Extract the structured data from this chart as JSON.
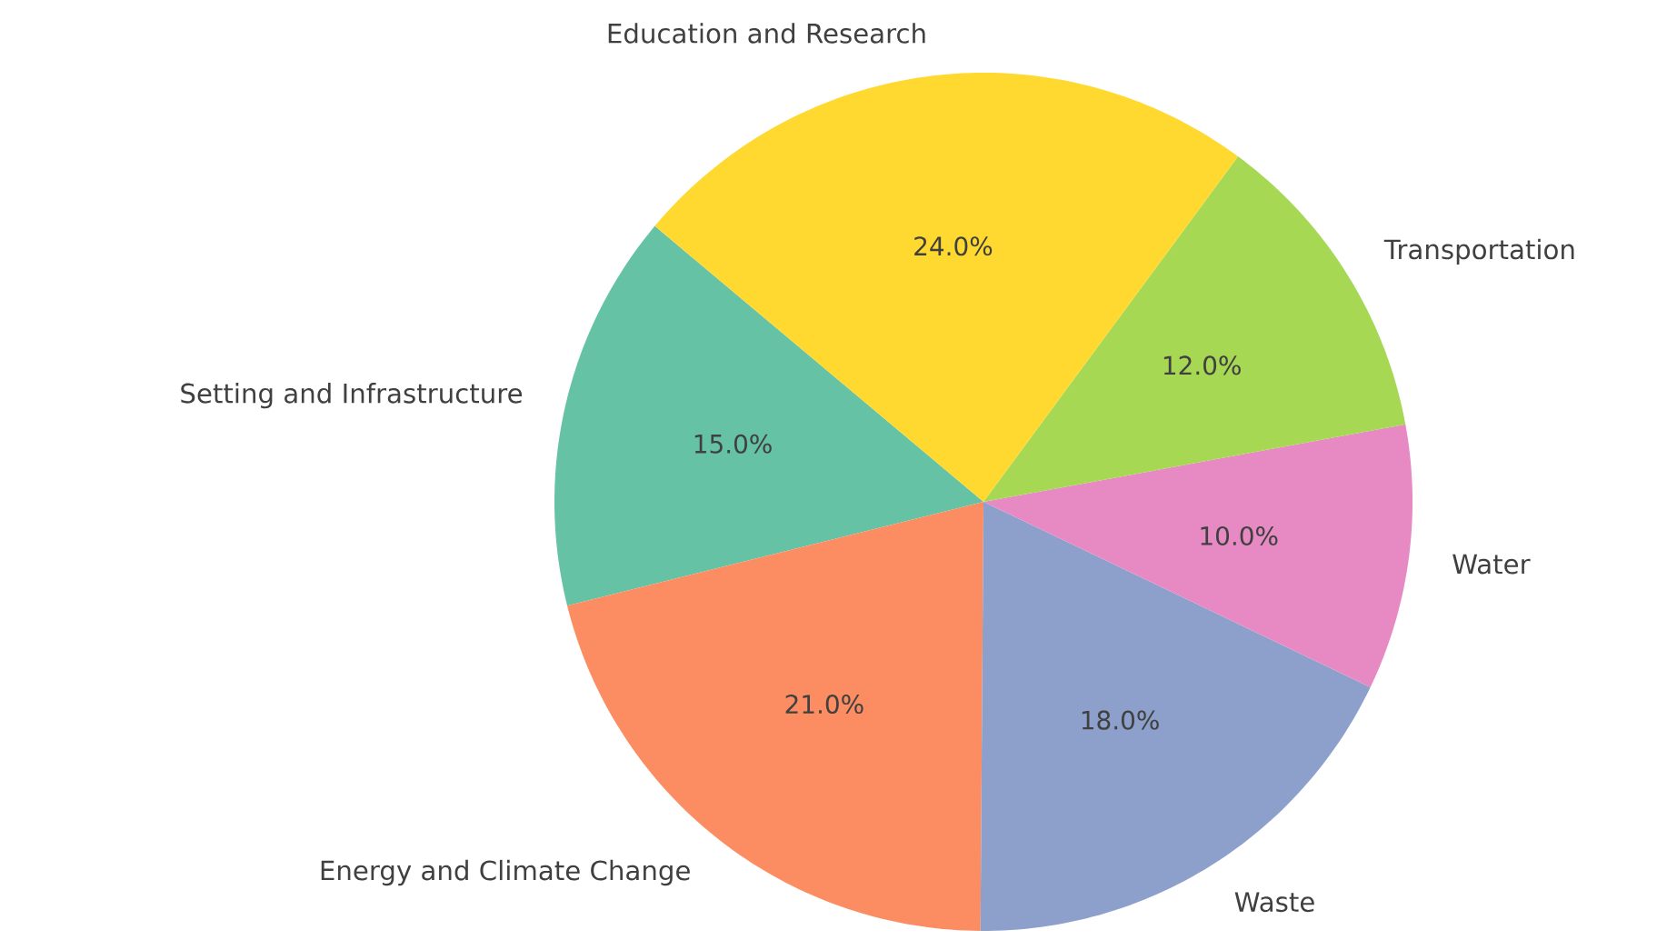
{
  "chart_data": {
    "type": "pie",
    "categories": [
      "Setting and Infrastructure",
      "Energy and Climate Change",
      "Waste",
      "Water",
      "Transportation",
      "Education and Research"
    ],
    "values": [
      15,
      21,
      18,
      10,
      12,
      24
    ],
    "colors": [
      "#66c2a5",
      "#fc8d62",
      "#8da0cb",
      "#e78ac3",
      "#a6d854",
      "#ffd92f"
    ],
    "value_labels": [
      "15.0%",
      "21.0%",
      "18.0%",
      "10.0%",
      "12.0%",
      "24.0%"
    ]
  }
}
